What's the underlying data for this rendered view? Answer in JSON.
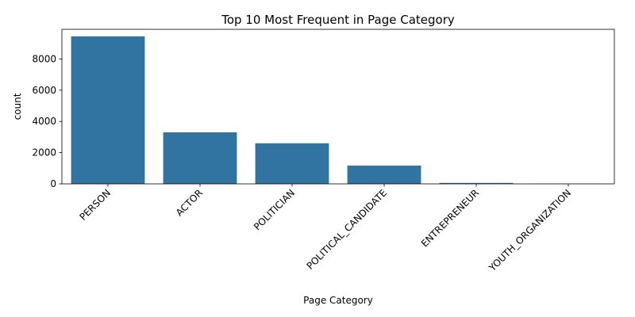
{
  "chart_data": {
    "type": "bar",
    "title": "Top 10 Most Frequent in Page Category",
    "xlabel": "Page Category",
    "ylabel": "count",
    "categories": [
      "PERSON",
      "ACTOR",
      "POLITICIAN",
      "POLITICAL_CANDIDATE",
      "ENTREPRENEUR",
      "YOUTH_ORGANIZATION"
    ],
    "values": [
      9450,
      3300,
      2600,
      1170,
      60,
      10
    ],
    "ylim": [
      0,
      9900
    ],
    "yticks": [
      0,
      2000,
      4000,
      6000,
      8000
    ],
    "bar_color": "#3274a1",
    "grid": false,
    "legend": "none"
  }
}
